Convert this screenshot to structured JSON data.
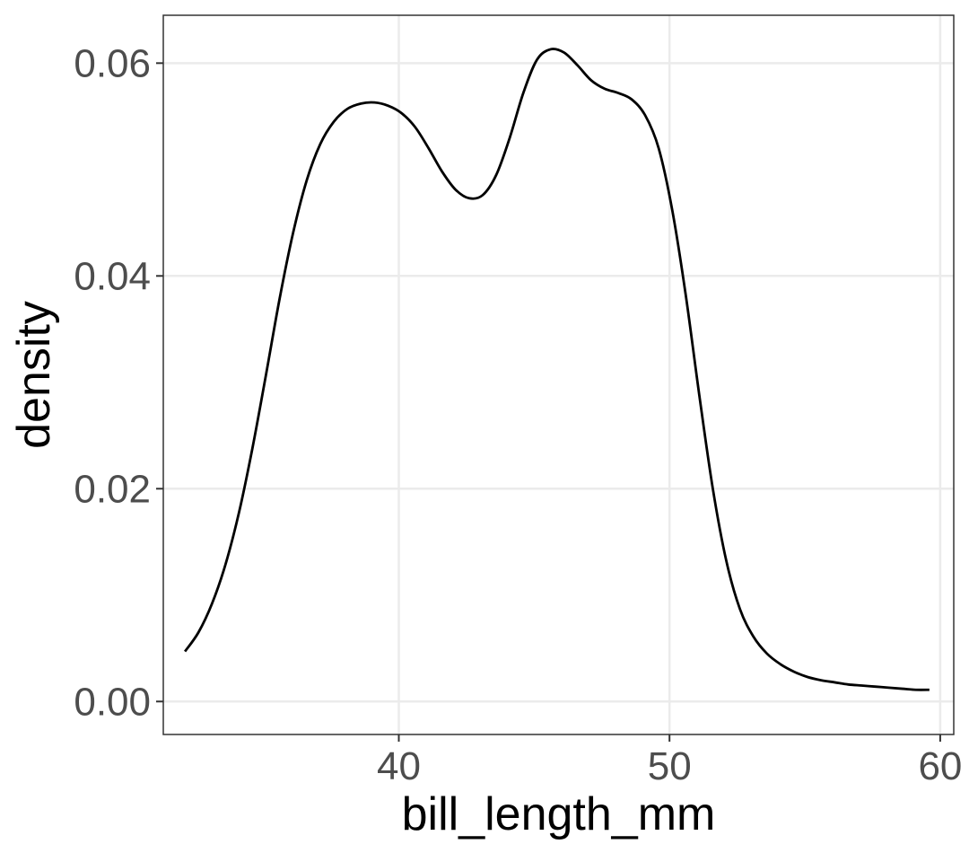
{
  "chart_data": {
    "type": "line",
    "geom": "density",
    "title": "",
    "xlabel": "bill_length_mm",
    "ylabel": "density",
    "xlim": [
      31.3,
      60.5
    ],
    "ylim": [
      -0.0031,
      0.0645
    ],
    "x_ticks": [
      40,
      50,
      60
    ],
    "x_tick_labels": [
      "40",
      "50",
      "60"
    ],
    "y_ticks": [
      0.0,
      0.02,
      0.04,
      0.06
    ],
    "y_tick_labels": [
      "0.00",
      "0.02",
      "0.04",
      "0.06"
    ],
    "grid": true,
    "legend": "none",
    "line_color": "#000000",
    "grid_color": "#ebebeb",
    "series": [
      {
        "x": [
          32.1,
          32.6,
          33.1,
          33.6,
          34.1,
          34.6,
          35.1,
          35.6,
          36.1,
          36.6,
          37.1,
          37.6,
          38.1,
          38.6,
          39.1,
          39.6,
          40.1,
          40.6,
          41.1,
          41.6,
          42.1,
          42.6,
          43.1,
          43.6,
          44.1,
          44.6,
          45.1,
          45.6,
          46.1,
          46.6,
          47.1,
          47.6,
          48.1,
          48.6,
          49.1,
          49.6,
          50.1,
          50.6,
          51.1,
          51.6,
          52.1,
          52.6,
          53.1,
          53.6,
          54.1,
          54.6,
          55.1,
          55.6,
          56.1,
          56.6,
          57.1,
          57.6,
          58.1,
          58.6,
          59.1,
          59.6
        ],
        "y": [
          0.0047,
          0.0065,
          0.0092,
          0.0129,
          0.0178,
          0.0239,
          0.0308,
          0.0379,
          0.0441,
          0.049,
          0.0524,
          0.0545,
          0.0557,
          0.0562,
          0.0563,
          0.056,
          0.0553,
          0.054,
          0.052,
          0.0498,
          0.0481,
          0.0473,
          0.0476,
          0.0495,
          0.053,
          0.0572,
          0.0603,
          0.0613,
          0.061,
          0.0598,
          0.0584,
          0.0576,
          0.0572,
          0.0566,
          0.0551,
          0.052,
          0.0462,
          0.0382,
          0.0288,
          0.02,
          0.0132,
          0.0087,
          0.0061,
          0.0045,
          0.0035,
          0.0028,
          0.0023,
          0.002,
          0.0018,
          0.0016,
          0.0015,
          0.0014,
          0.0013,
          0.0012,
          0.0011,
          0.0011
        ]
      }
    ]
  }
}
